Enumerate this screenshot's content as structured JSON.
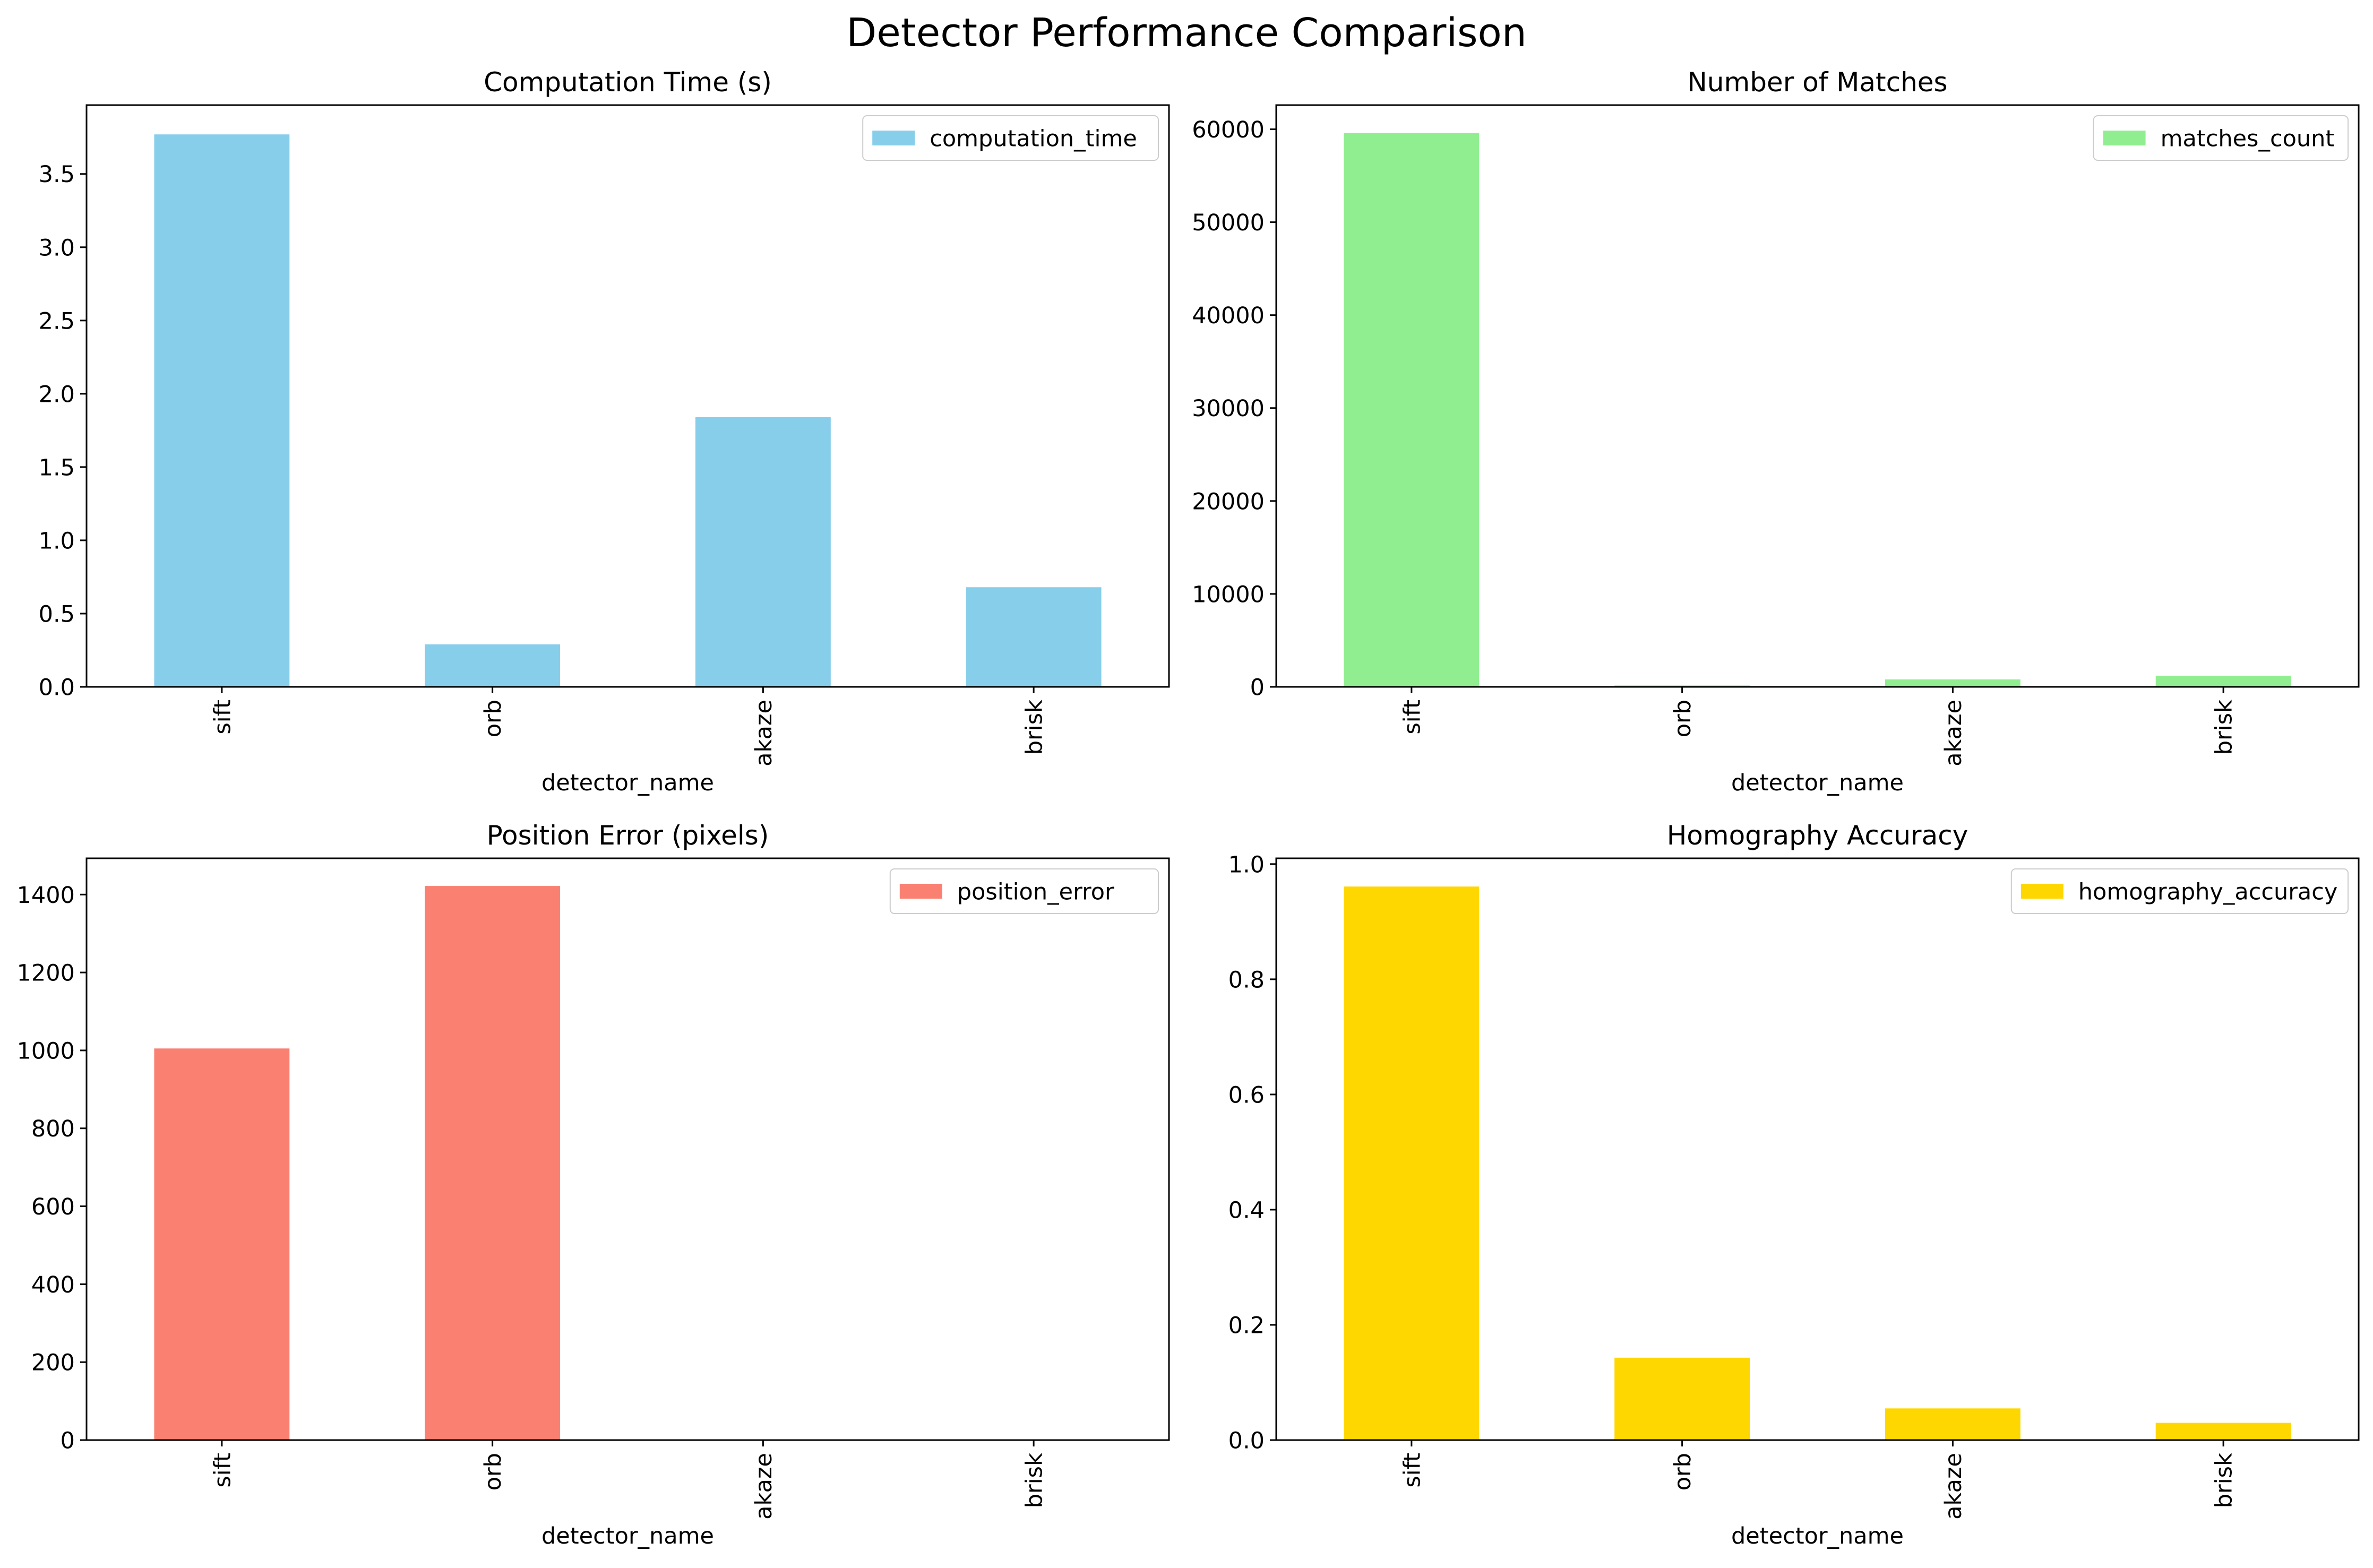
{
  "figure": {
    "title": "Detector Performance Comparison"
  },
  "chart_data": [
    {
      "type": "bar",
      "title": "Computation Time (s)",
      "xlabel": "detector_name",
      "ylabel": "",
      "categories": [
        "sift",
        "orb",
        "akaze",
        "brisk"
      ],
      "series": [
        {
          "name": "computation_time",
          "values": [
            3.77,
            0.29,
            1.84,
            0.68
          ]
        }
      ],
      "ylim": [
        0,
        3.97
      ],
      "yticks": [
        0.0,
        0.5,
        1.0,
        1.5,
        2.0,
        2.5,
        3.0,
        3.5
      ],
      "ytick_labels": [
        "0.0",
        "0.5",
        "1.0",
        "1.5",
        "2.0",
        "2.5",
        "3.0",
        "3.5"
      ],
      "legend": "top-right",
      "grid": false,
      "color": "#87ceeb"
    },
    {
      "type": "bar",
      "title": "Number of Matches",
      "xlabel": "detector_name",
      "ylabel": "",
      "categories": [
        "sift",
        "orb",
        "akaze",
        "brisk"
      ],
      "series": [
        {
          "name": "matches_count",
          "values": [
            59600,
            150,
            800,
            1200
          ]
        }
      ],
      "ylim": [
        0,
        62600
      ],
      "yticks": [
        0,
        10000,
        20000,
        30000,
        40000,
        50000,
        60000
      ],
      "ytick_labels": [
        "0",
        "10000",
        "20000",
        "30000",
        "40000",
        "50000",
        "60000"
      ],
      "legend": "top-right",
      "grid": false,
      "color": "#90ee90"
    },
    {
      "type": "bar",
      "title": "Position Error (pixels)",
      "xlabel": "detector_name",
      "ylabel": "",
      "categories": [
        "sift",
        "orb",
        "akaze",
        "brisk"
      ],
      "series": [
        {
          "name": "position_error",
          "values": [
            1005,
            1422,
            0,
            0
          ]
        }
      ],
      "ylim": [
        0,
        1493
      ],
      "yticks": [
        0,
        200,
        400,
        600,
        800,
        1000,
        1200,
        1400
      ],
      "ytick_labels": [
        "0",
        "200",
        "400",
        "600",
        "800",
        "1000",
        "1200",
        "1400"
      ],
      "legend": "top-right",
      "grid": false,
      "color": "#fa8072"
    },
    {
      "type": "bar",
      "title": "Homography Accuracy",
      "xlabel": "detector_name",
      "ylabel": "",
      "categories": [
        "sift",
        "orb",
        "akaze",
        "brisk"
      ],
      "series": [
        {
          "name": "homography_accuracy",
          "values": [
            0.961,
            0.143,
            0.055,
            0.03
          ]
        }
      ],
      "ylim": [
        0,
        1.01
      ],
      "yticks": [
        0.0,
        0.2,
        0.4,
        0.6,
        0.8,
        1.0
      ],
      "ytick_labels": [
        "0.0",
        "0.2",
        "0.4",
        "0.6",
        "0.8",
        "1.0"
      ],
      "legend": "top-right",
      "grid": false,
      "color": "#ffd700"
    }
  ]
}
